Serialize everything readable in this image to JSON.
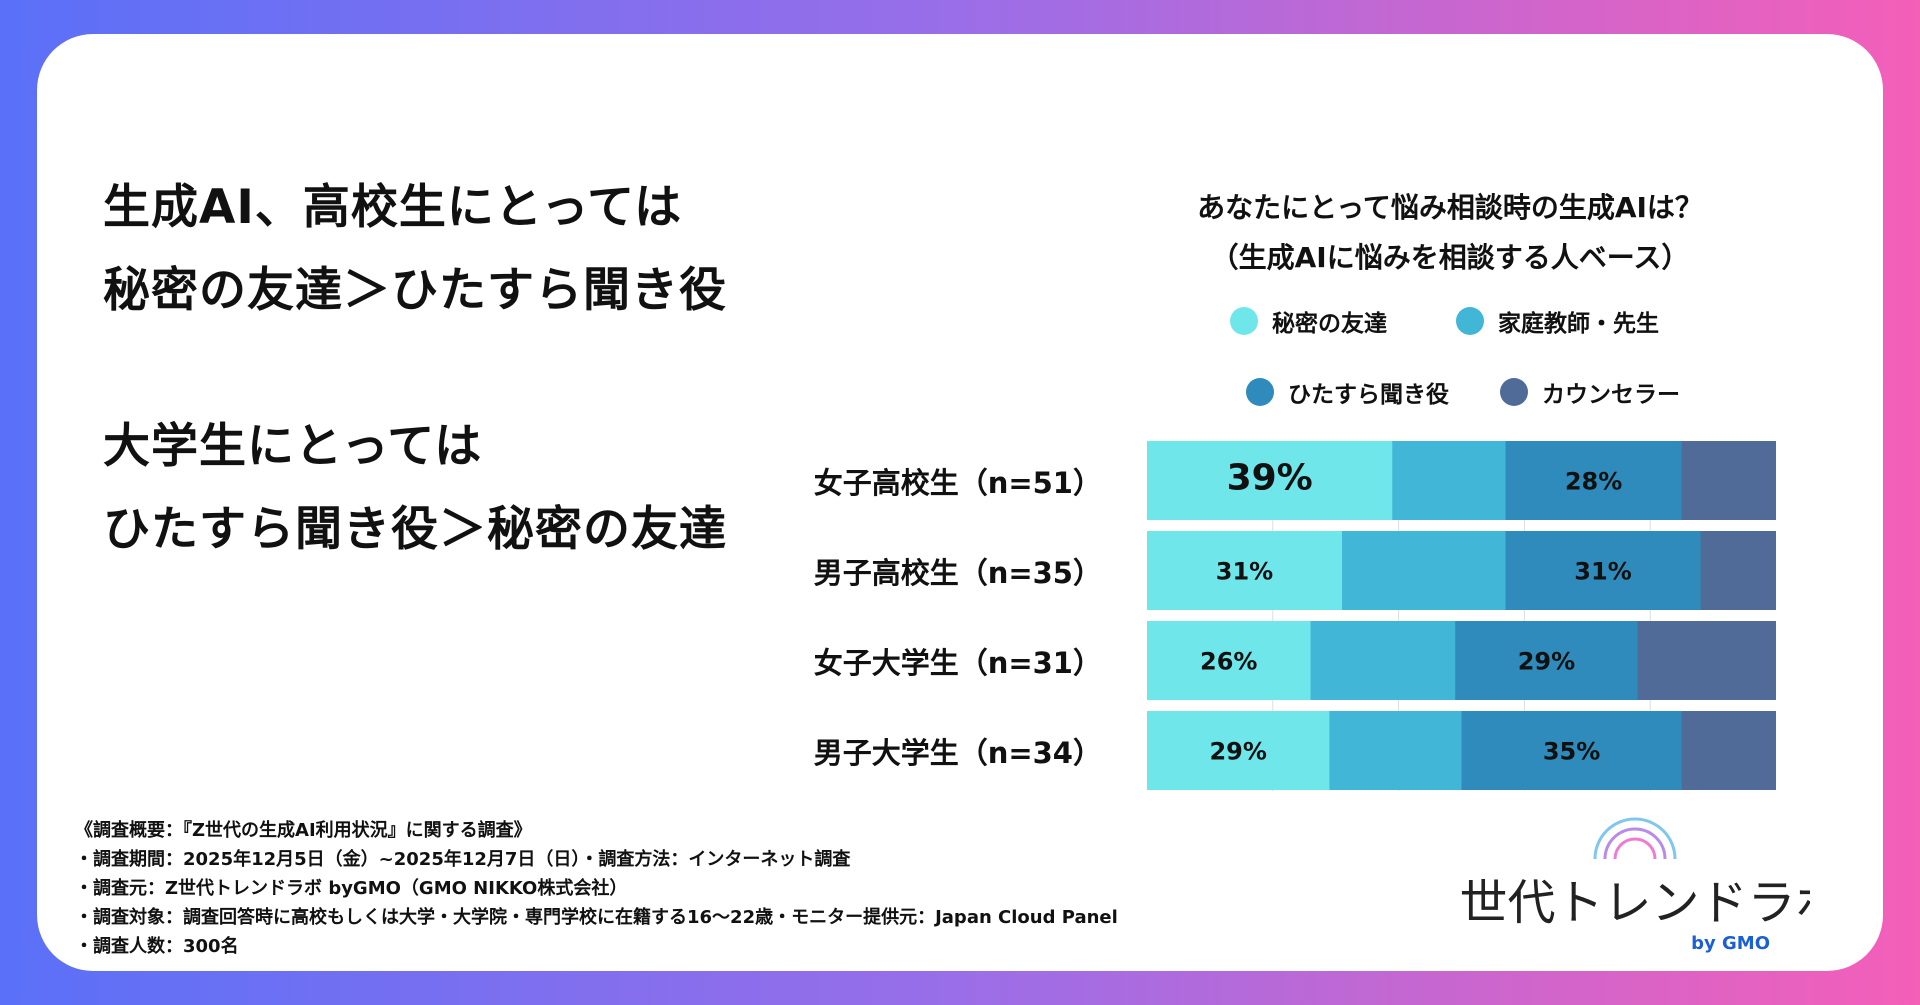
{
  "headline": {
    "lines": [
      "生成AI、高校生にとっては",
      "秘密の友達＞ひたすら聞き役",
      "大学生にとっては",
      "ひたすら聞き役＞秘密の友達"
    ]
  },
  "chart_data": {
    "type": "bar",
    "orientation": "horizontal-stacked-100",
    "title": "あなたにとって悩み相談時の生成AIは？",
    "subtitle": "（生成AIに悩みを相談する人ベース）",
    "categories": [
      "女子高校生（n=51）",
      "男子高校生（n=35）",
      "女子大学生（n=31）",
      "男子大学生（n=34）"
    ],
    "series": [
      {
        "name": "秘密の友達",
        "color": "#6fe6ea",
        "values": [
          39,
          31,
          26,
          29
        ],
        "labels": [
          "39%",
          "31%",
          "26%",
          "29%"
        ]
      },
      {
        "name": "家庭教師・先生",
        "color": "#42b6d6",
        "values": [
          18,
          26,
          23,
          21
        ],
        "labels": [
          "",
          "",
          "",
          ""
        ]
      },
      {
        "name": "ひたすら聞き役",
        "color": "#2e8bbb",
        "values": [
          28,
          31,
          29,
          35
        ],
        "labels": [
          "28%",
          "31%",
          "29%",
          "35%"
        ]
      },
      {
        "name": "カウンセラー",
        "color": "#506b97",
        "values": [
          15,
          12,
          22,
          15
        ],
        "labels": [
          "",
          "",
          "",
          ""
        ]
      }
    ],
    "xlim": [
      0,
      100
    ],
    "gridlines": [
      20,
      40,
      60,
      80
    ],
    "legend_position": "top"
  },
  "footnotes": [
    "《調査概要：『Z世代の生成AI利用状況』に関する調査》",
    "・調査期間：2025年12月5日（金）~2025年12月7日（日）・調査方法：インターネット調査",
    "・調査元：Z世代トレンドラボ byGMO（GMO NIKKO株式会社）",
    "・調査対象：調査回答時に高校もしくは大学・大学院・専門学校に在籍する16〜22歳・モニター提供元：Japan Cloud Panel",
    "・調査人数：300名"
  ],
  "logo": {
    "name": "Z世代トレンドラボ",
    "by": "by GMO"
  }
}
